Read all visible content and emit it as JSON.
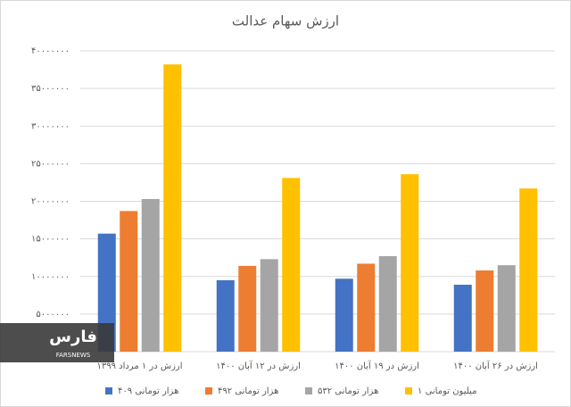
{
  "chart_data": {
    "type": "bar",
    "title": "ارزش سهام عدالت",
    "categories": [
      "ارزش در ۱ مرداد ۱۳۹۹",
      "ارزش در ۱۲ آبان ۱۴۰۰",
      "ارزش در ۱۹ آبان ۱۴۰۰",
      "ارزش در ۲۶ آبان ۱۴۰۰"
    ],
    "series": [
      {
        "name": "۴۰۹ هزار تومانی",
        "color": "#4472c4",
        "values": [
          15700000,
          9500000,
          9700000,
          8900000
        ]
      },
      {
        "name": "۴۹۲ هزار تومانی",
        "color": "#ed7d31",
        "values": [
          18700000,
          11400000,
          11700000,
          10800000
        ]
      },
      {
        "name": "۵۳۲ هزار تومانی",
        "color": "#a5a5a5",
        "values": [
          20300000,
          12300000,
          12700000,
          11500000
        ]
      },
      {
        "name": "۱ میلیون تومانی",
        "color": "#ffc000",
        "values": [
          38200000,
          23100000,
          23600000,
          21700000
        ]
      }
    ],
    "ylim": [
      0,
      40000000
    ],
    "yticks": [
      {
        "value": 5000000,
        "label": "۵۰۰۰۰۰۰"
      },
      {
        "value": 10000000,
        "label": "۱۰۰۰۰۰۰۰"
      },
      {
        "value": 15000000,
        "label": "۱۵۰۰۰۰۰۰"
      },
      {
        "value": 20000000,
        "label": "۲۰۰۰۰۰۰۰"
      },
      {
        "value": 25000000,
        "label": "۲۵۰۰۰۰۰۰"
      },
      {
        "value": 30000000,
        "label": "۳۰۰۰۰۰۰۰"
      },
      {
        "value": 35000000,
        "label": "۳۵۰۰۰۰۰۰"
      },
      {
        "value": 40000000,
        "label": "۴۰۰۰۰۰۰۰"
      }
    ],
    "grid": true,
    "legend": "bottom",
    "watermark": {
      "logo": "فارس",
      "caption": "FARSNEWS"
    }
  }
}
